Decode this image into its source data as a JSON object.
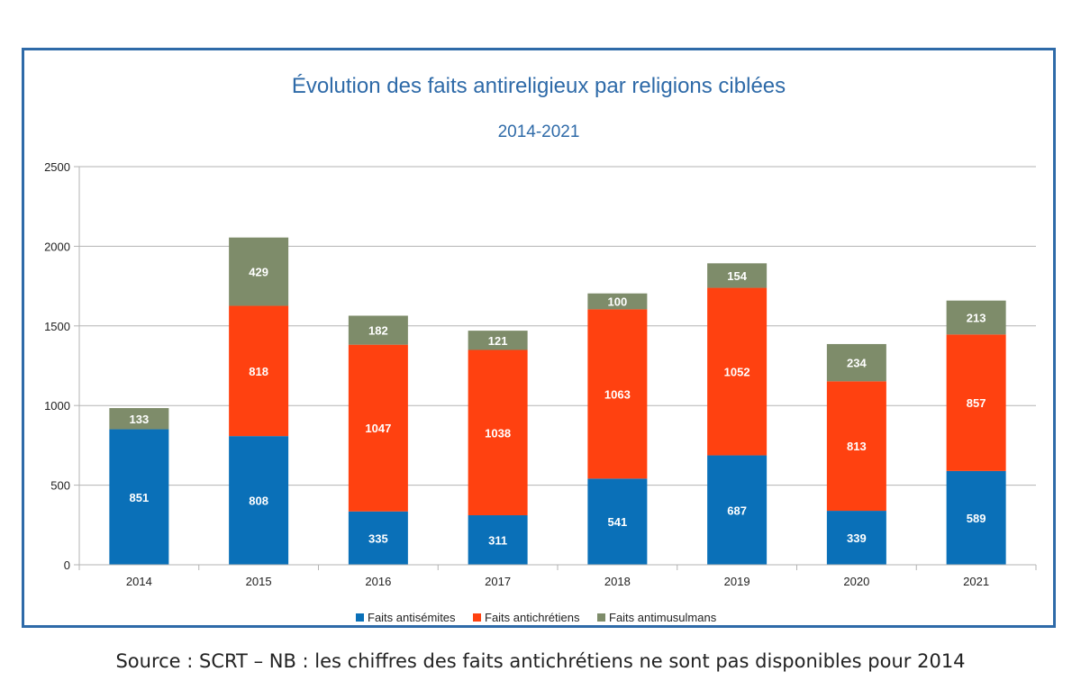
{
  "chart_data": {
    "type": "bar",
    "stacked": true,
    "title": "Évolution des faits antireligieux par religions ciblées",
    "subtitle": "2014-2021",
    "xlabel": "",
    "ylabel": "",
    "categories": [
      "2014",
      "2015",
      "2016",
      "2017",
      "2018",
      "2019",
      "2020",
      "2021"
    ],
    "ylim": [
      0,
      2500
    ],
    "yticks": [
      "0",
      "500",
      "1000",
      "1500",
      "2000",
      "2500"
    ],
    "grid": true,
    "legend_position": "bottom",
    "series": [
      {
        "name": "Faits antisémites",
        "color": "#0a70b8",
        "values": [
          851,
          808,
          335,
          311,
          541,
          687,
          339,
          589
        ]
      },
      {
        "name": "Faits antichrétiens",
        "color": "#ff4110",
        "values": [
          null,
          818,
          1047,
          1038,
          1063,
          1052,
          813,
          857
        ]
      },
      {
        "name": "Faits antimusulmans",
        "color": "#7e8c6a",
        "values": [
          133,
          429,
          182,
          121,
          100,
          154,
          234,
          213
        ]
      }
    ]
  },
  "source_note": "Source : SCRT – NB : les chiffres des faits antichrétiens ne sont pas disponibles pour 2014"
}
